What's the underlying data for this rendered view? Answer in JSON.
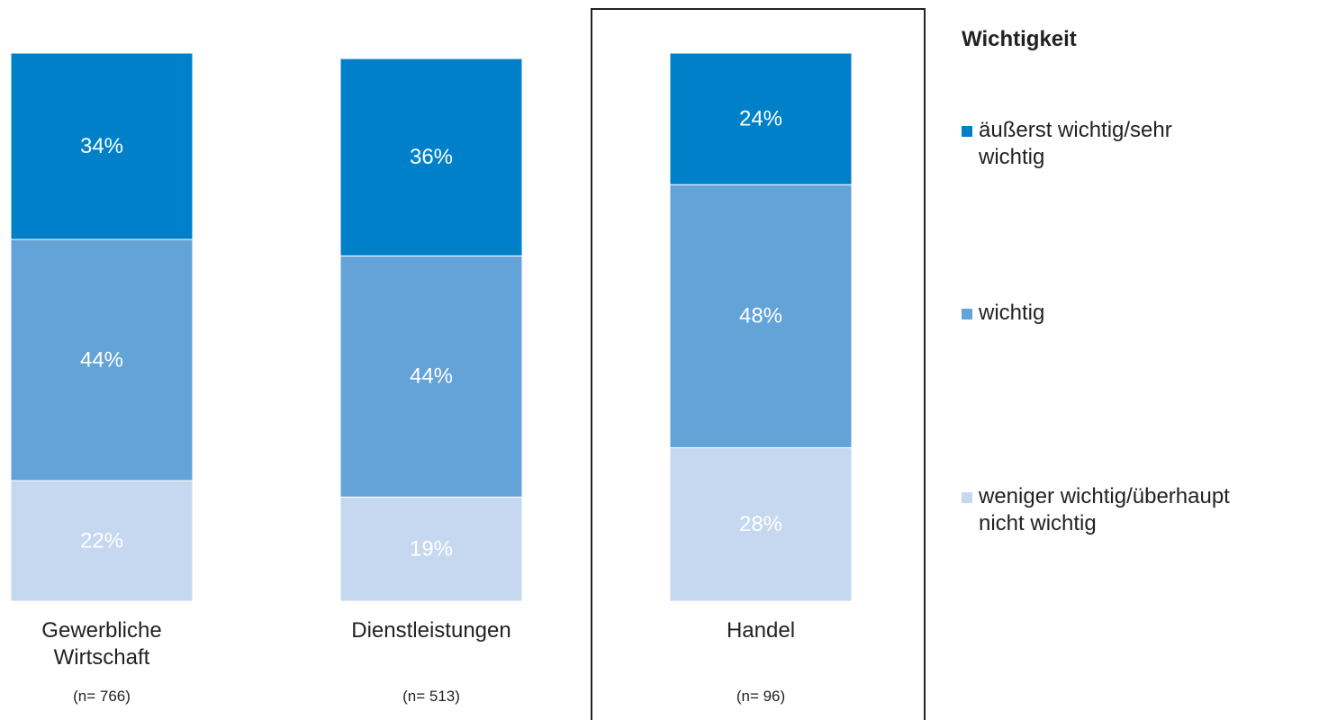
{
  "chart_data": {
    "type": "stacked_bar",
    "categories": [
      "Gewerbliche\nWirtschaft",
      "Dienstleistungen",
      "Handel"
    ],
    "sample_sizes": [
      "(n= 766)",
      "(n= 513)",
      "(n= 96)"
    ],
    "legend_title": "Wichtigkeit",
    "ylim": [
      0,
      100
    ],
    "series": [
      {
        "name": "weniger wichtig/überhaupt\nnicht wichtig",
        "color": "#c5d8f0",
        "values": [
          22,
          19,
          28
        ],
        "value_labels": [
          "22%",
          "19%",
          "28%"
        ]
      },
      {
        "name": "wichtig",
        "color": "#64a3d8",
        "values": [
          44,
          44,
          48
        ],
        "value_labels": [
          "44%",
          "44%",
          "48%"
        ]
      },
      {
        "name": "äußerst wichtig/sehr\nwichtig",
        "color": "#0080c8",
        "values": [
          34,
          36,
          24
        ],
        "value_labels": [
          "34%",
          "36%",
          "24%"
        ]
      }
    ],
    "highlight_category": 2
  }
}
